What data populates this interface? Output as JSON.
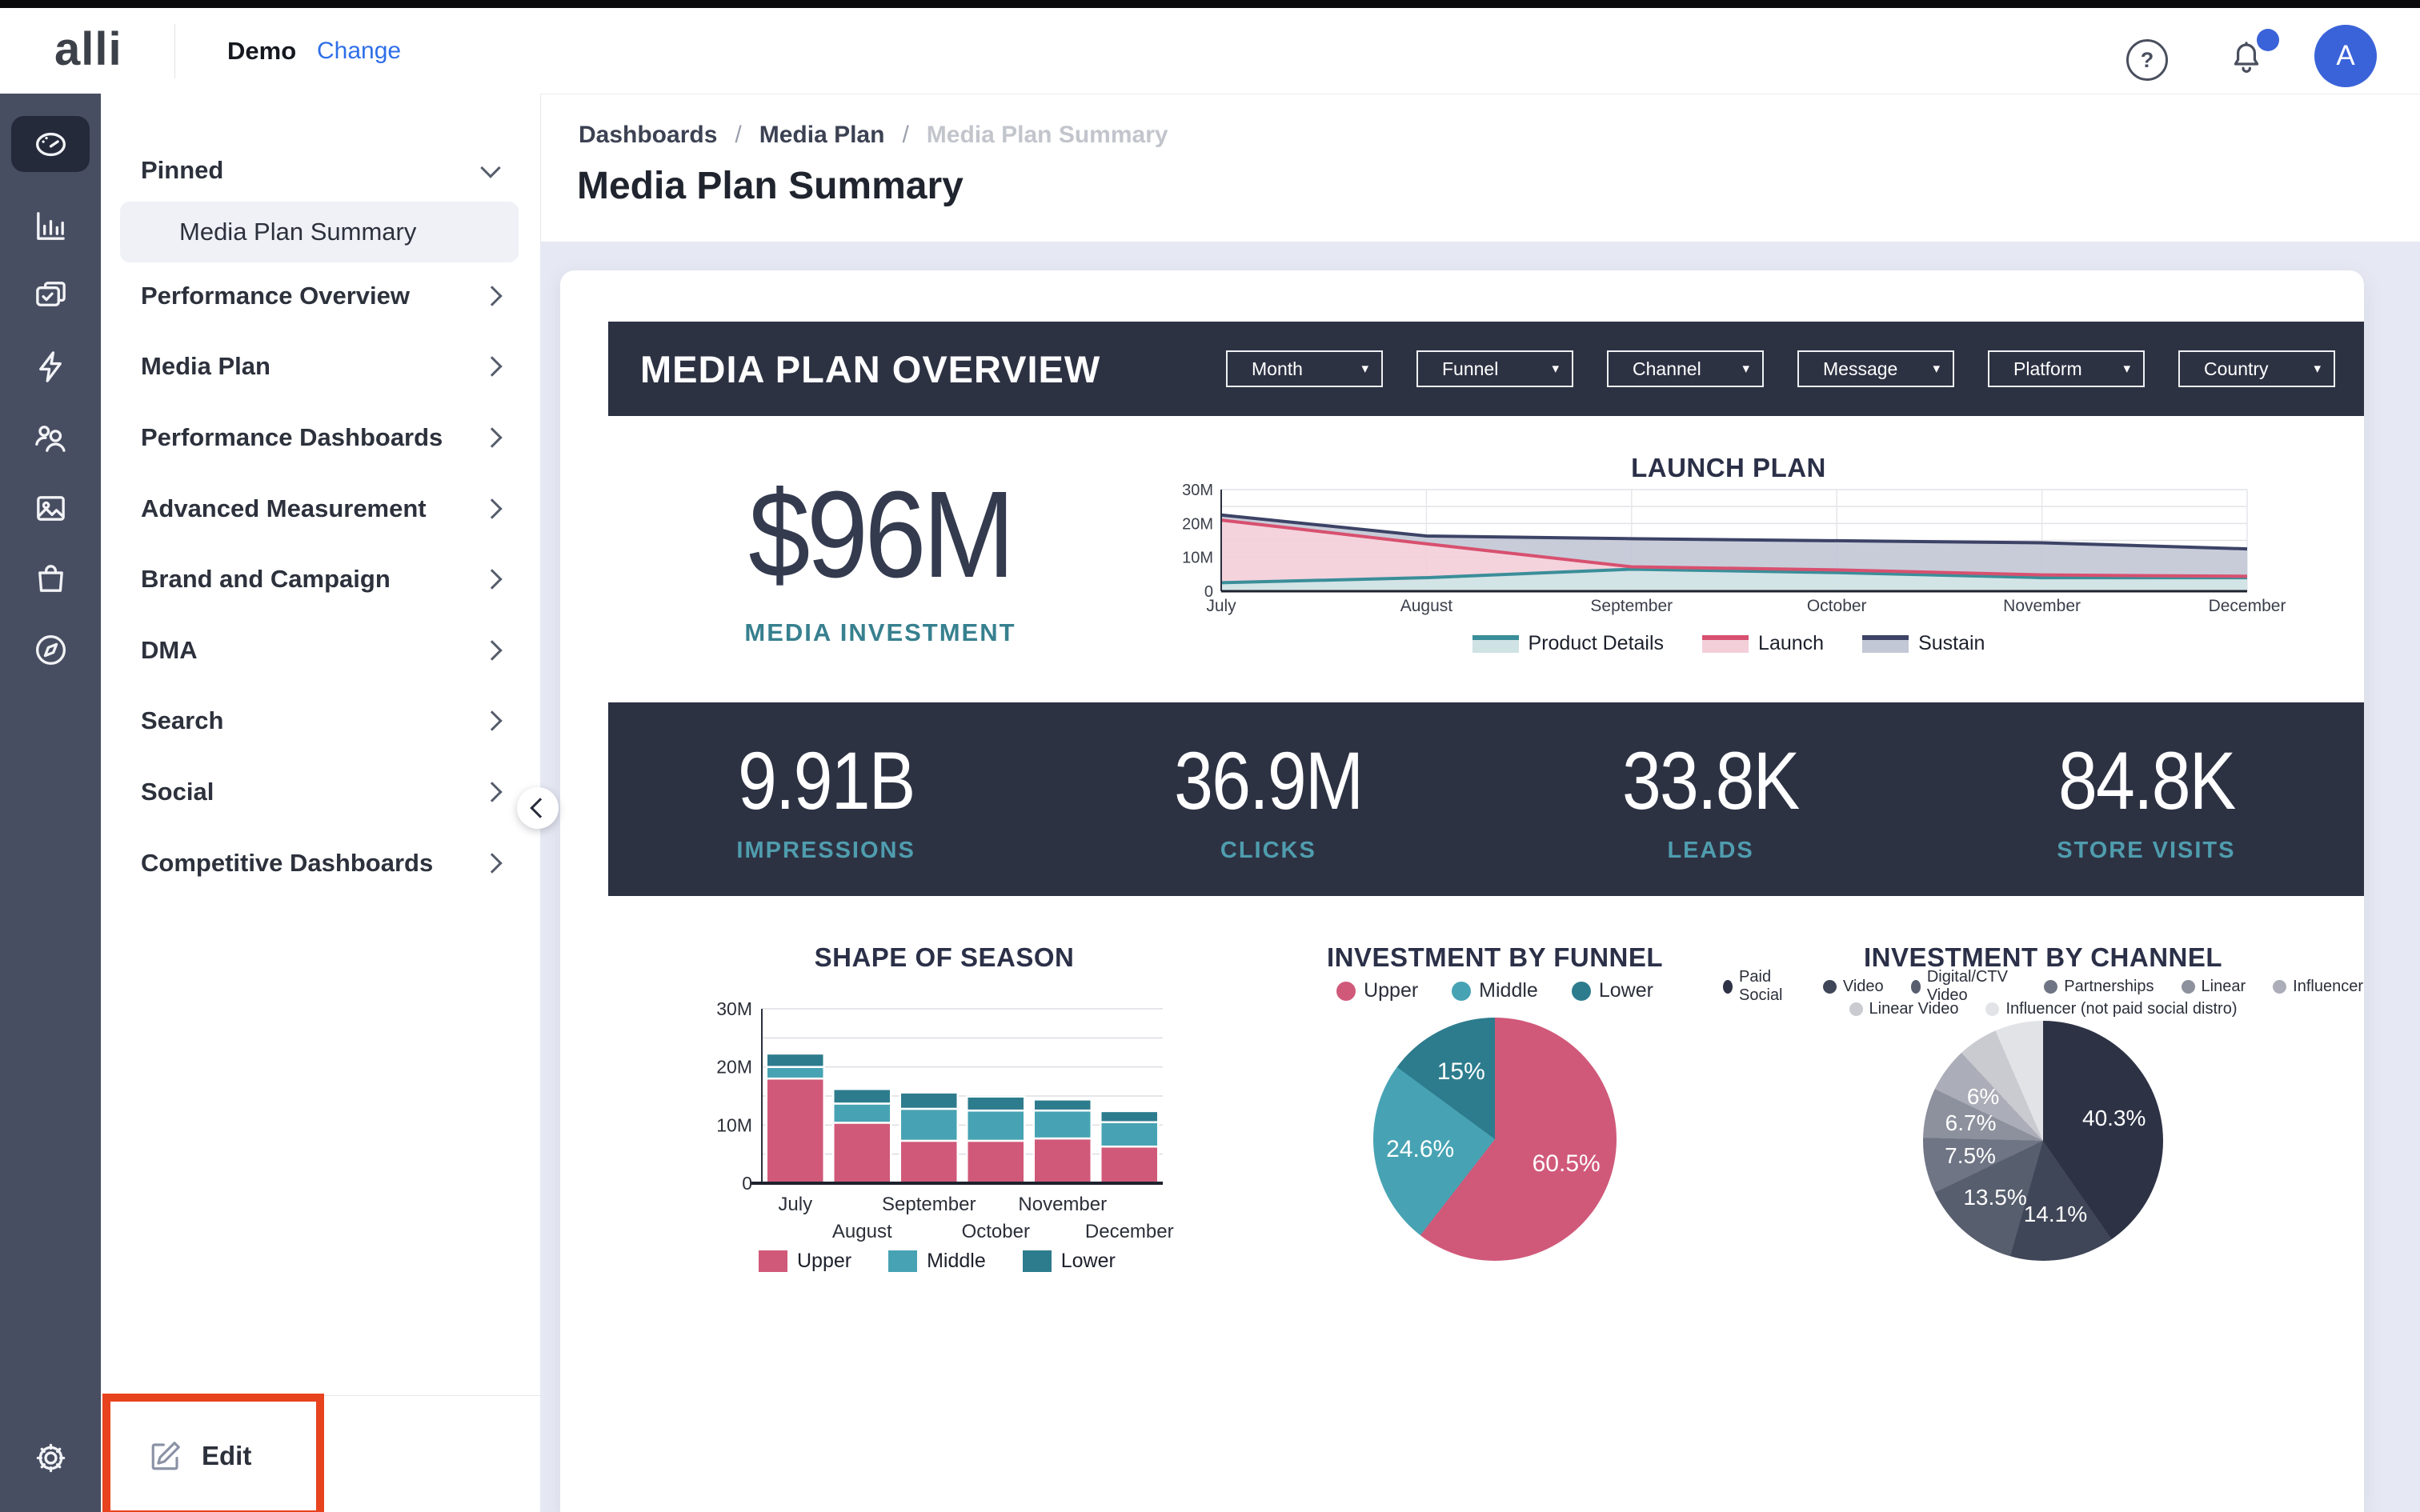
{
  "header": {
    "logo": "alli",
    "workspace": "Demo",
    "change_label": "Change",
    "avatar_initial": "A",
    "has_notification": true
  },
  "breadcrumb": {
    "separator": "/",
    "items": [
      "Dashboards",
      "Media Plan",
      "Media Plan Summary"
    ]
  },
  "page_title": "Media Plan Summary",
  "sidebar": {
    "pinned_label": "Pinned",
    "pinned_item": "Media Plan Summary",
    "items": [
      "Performance Overview",
      "Media Plan",
      "Performance Dashboards",
      "Advanced Measurement",
      "Brand and Campaign",
      "DMA",
      "Search",
      "Social",
      "Competitive Dashboards"
    ],
    "rail_icons": [
      "dashboard",
      "bar-chart",
      "clipboard-check",
      "lightning-bolt",
      "audience",
      "image",
      "shopping-bag",
      "compass"
    ],
    "settings_icon": "gear",
    "edit_label": "Edit"
  },
  "overview": {
    "title": "MEDIA PLAN OVERVIEW",
    "filters": [
      "Month",
      "Funnel",
      "Channel",
      "Message",
      "Platform",
      "Country"
    ],
    "investment_value": "$96M",
    "investment_label": "MEDIA INVESTMENT",
    "stats": [
      {
        "value": "9.91B",
        "label": "IMPRESSIONS"
      },
      {
        "value": "36.9M",
        "label": "CLICKS"
      },
      {
        "value": "33.8K",
        "label": "LEADS"
      },
      {
        "value": "84.8K",
        "label": "STORE VISITS"
      }
    ]
  },
  "colors": {
    "accent_blue": "#3a63d9",
    "link_blue": "#2e6fe8",
    "panel_dark": "#2d3243",
    "rail_dark": "#484e62",
    "rail_active": "#252a3b",
    "teal_label": "#4f9dae",
    "edit_outline_red": "#e8431f",
    "band_bg": "#e6e9f3",
    "upper_pink": "#d0597a",
    "middle_teal": "#47a3b3",
    "lower_teal": "#2d7c8d"
  },
  "chart_data": [
    {
      "id": "launch-plan",
      "type": "area",
      "title": "LAUNCH PLAN",
      "x": [
        "July",
        "August",
        "September",
        "October",
        "November",
        "December"
      ],
      "ylim": [
        0,
        30
      ],
      "yticks": [
        "0",
        "10M",
        "20M",
        "30M"
      ],
      "unit": "millions",
      "note": "stack_top values are cumulative stacked totals in millions",
      "grid": true,
      "legend_position": "bottom",
      "series": [
        {
          "name": "Product Details",
          "stack_top": [
            2.5,
            4,
            6.5,
            5.5,
            4,
            4
          ],
          "line": "#3a8e99",
          "fill": "#cfe2e4"
        },
        {
          "name": "Launch",
          "stack_top": [
            21,
            14,
            7.2,
            6.3,
            4.8,
            4.4
          ],
          "line": "#d8506f",
          "fill": "#f3cfda"
        },
        {
          "name": "Sustain",
          "stack_top": [
            22.5,
            16.3,
            15.5,
            14.9,
            14.3,
            12.5
          ],
          "line": "#3c4366",
          "fill": "#c3c8d6"
        }
      ]
    },
    {
      "id": "shape-of-season",
      "type": "bar",
      "title": "SHAPE OF SEASON",
      "categories": [
        "July",
        "August",
        "September",
        "October",
        "November",
        "December"
      ],
      "ylim": [
        0,
        30
      ],
      "yticks": [
        "0",
        "10M",
        "20M",
        "30M"
      ],
      "unit": "millions",
      "stacked": true,
      "legend_position": "bottom",
      "series": [
        {
          "name": "Upper",
          "color": "#d0597a",
          "values": [
            18,
            10.4,
            7.3,
            7.3,
            7.7,
            6.3
          ]
        },
        {
          "name": "Middle",
          "color": "#47a3b3",
          "values": [
            2,
            3.3,
            5.5,
            5.2,
            4.8,
            4.2
          ]
        },
        {
          "name": "Lower",
          "color": "#2d7c8d",
          "values": [
            2.3,
            2.5,
            2.8,
            2.4,
            1.9,
            1.9
          ]
        }
      ]
    },
    {
      "id": "investment-by-funnel",
      "type": "pie",
      "title": "INVESTMENT BY FUNNEL",
      "legend_position": "top",
      "slices": [
        {
          "label": "Upper",
          "value": 60.5,
          "color": "#d0597a",
          "show_label": true
        },
        {
          "label": "Middle",
          "value": 24.6,
          "color": "#47a3b3",
          "show_label": true
        },
        {
          "label": "Lower",
          "value": 15,
          "color": "#2d7c8d",
          "show_label": true
        }
      ]
    },
    {
      "id": "investment-by-channel",
      "type": "pie",
      "title": "INVESTMENT BY CHANNEL",
      "legend_position": "top",
      "slices": [
        {
          "label": "Paid Social",
          "value": 40.3,
          "color": "#2d3245",
          "show_label": true
        },
        {
          "label": "Video",
          "value": 14.1,
          "color": "#3f4658",
          "show_label": true
        },
        {
          "label": "Digital/CTV Video",
          "value": 13.5,
          "color": "#575e6e",
          "show_label": true
        },
        {
          "label": "Partnerships",
          "value": 7.5,
          "color": "#6f7584",
          "show_label": true
        },
        {
          "label": "Linear",
          "value": 6.7,
          "color": "#8d919d",
          "show_label": true
        },
        {
          "label": "Influencer",
          "value": 6,
          "color": "#abaeb8",
          "show_label": true
        },
        {
          "label": "Linear Video",
          "value": 5.4,
          "color": "#c9cbd1",
          "show_label": false
        },
        {
          "label": "Influencer (not paid social distro)",
          "value": 6.5,
          "color": "#e2e3e7",
          "show_label": false
        }
      ]
    }
  ]
}
